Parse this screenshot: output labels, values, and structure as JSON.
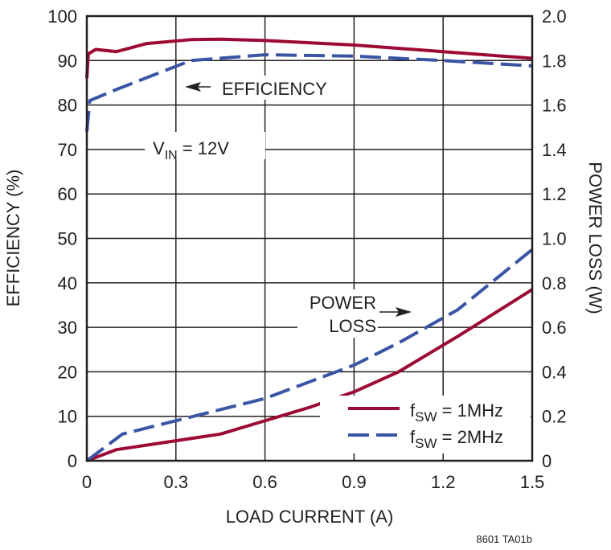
{
  "chart_data": {
    "type": "line",
    "xlabel": "LOAD CURRENT (A)",
    "ylabel": "EFFICIENCY (%)",
    "y2label": "POWER LOSS (W)",
    "xlim": [
      0,
      1.5
    ],
    "ylim": [
      0,
      100
    ],
    "y2lim": [
      0,
      2.0
    ],
    "grid": true,
    "legend_placement": "bottom-right",
    "xticks": [
      "0",
      "0.3",
      "0.6",
      "0.9",
      "1.2",
      "1.5"
    ],
    "yticks": [
      "0",
      "10",
      "20",
      "30",
      "40",
      "50",
      "60",
      "70",
      "80",
      "90",
      "100"
    ],
    "y2ticks": [
      "0",
      "0.2",
      "0.4",
      "0.6",
      "0.8",
      "1.0",
      "1.2",
      "1.4",
      "1.6",
      "1.8",
      "2.0"
    ],
    "annotations": {
      "efficiency": "EFFICIENCY",
      "vin_main": "V",
      "vin_sub": "IN",
      "vin_rest": " = 12V",
      "power_loss_1": "POWER",
      "power_loss_2": "LOSS"
    },
    "footnote": "8601 TA01b",
    "series": [
      {
        "name": "fSW = 1MHz",
        "name_main": "f",
        "name_sub": "SW",
        "name_rest": " = 1MHz",
        "color": "#9c0a34",
        "dash": "solid",
        "efficiency": {
          "x": [
            0,
            0.005,
            0.03,
            0.1,
            0.2,
            0.35,
            0.45,
            0.6,
            0.9,
            1.2,
            1.5
          ],
          "y": [
            86,
            91.5,
            92.5,
            92,
            93.8,
            94.7,
            94.8,
            94.5,
            93.5,
            92,
            90.5
          ]
        },
        "power_loss": {
          "x": [
            0,
            0.1,
            0.3,
            0.45,
            0.6,
            0.75,
            0.9,
            1.05,
            1.25,
            1.5
          ],
          "y": [
            0,
            0.05,
            0.09,
            0.12,
            0.18,
            0.24,
            0.31,
            0.4,
            0.56,
            0.77
          ]
        }
      },
      {
        "name": "fSW = 2MHz",
        "name_main": "f",
        "name_sub": "SW",
        "name_rest": " = 2MHz",
        "color": "#3a55a4",
        "dash": "dashed",
        "efficiency": {
          "x": [
            0,
            0.01,
            0.1,
            0.35,
            0.6,
            0.9,
            1.2,
            1.5
          ],
          "y": [
            74,
            81,
            83.5,
            90,
            91.3,
            91,
            90,
            88.8
          ]
        },
        "power_loss": {
          "x": [
            0,
            0.12,
            0.33,
            0.6,
            0.9,
            1.05,
            1.25,
            1.5
          ],
          "y": [
            0,
            0.12,
            0.19,
            0.28,
            0.43,
            0.53,
            0.68,
            0.95
          ]
        }
      }
    ]
  }
}
